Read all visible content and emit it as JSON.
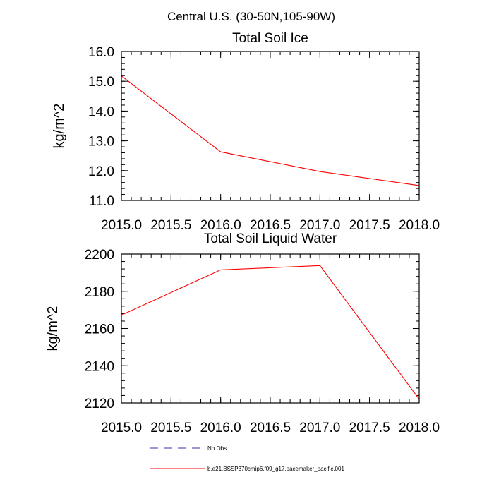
{
  "figure_title": "Central U.S. (30-50N,105-90W)",
  "colors": {
    "model": "#ff0000",
    "obs": "#3333aa",
    "axis": "#000000"
  },
  "legend": [
    {
      "label": "No Obs",
      "style": "dashed",
      "color": "#3333aa"
    },
    {
      "label": "b.e21.BSSP370cmip6.f09_g17.pacemaker_pacific.001",
      "style": "solid",
      "color": "#ff0000"
    }
  ],
  "chart_data": [
    {
      "type": "line",
      "title": "Total Soil Ice",
      "xlabel": "",
      "ylabel": "kg/m^2",
      "xlim": [
        2015.0,
        2018.0
      ],
      "ylim": [
        11.0,
        16.0
      ],
      "x_ticks": [
        2015.0,
        2015.5,
        2016.0,
        2016.5,
        2017.0,
        2017.5,
        2018.0
      ],
      "x_tick_labels": [
        "2015.0",
        "2015.5",
        "2016.0",
        "2016.5",
        "2017.0",
        "2017.5",
        "2018.0"
      ],
      "y_ticks": [
        11.0,
        12.0,
        13.0,
        14.0,
        15.0,
        16.0
      ],
      "y_tick_labels": [
        "11.0",
        "12.0",
        "13.0",
        "14.0",
        "15.0",
        "16.0"
      ],
      "x_minor_step": 0.1,
      "y_minor_step": 0.2,
      "grid": false,
      "series": [
        {
          "x": [
            2015,
            2016,
            2017,
            2018
          ],
          "values": [
            15.18,
            12.63,
            11.97,
            11.5
          ],
          "color": "#ff0000"
        }
      ]
    },
    {
      "type": "line",
      "title": "Total Soil Liquid Water",
      "xlabel": "",
      "ylabel": "kg/m^2",
      "xlim": [
        2015.0,
        2018.0
      ],
      "ylim": [
        2120,
        2200
      ],
      "x_ticks": [
        2015.0,
        2015.5,
        2016.0,
        2016.5,
        2017.0,
        2017.5,
        2018.0
      ],
      "x_tick_labels": [
        "2015.0",
        "2015.5",
        "2016.0",
        "2016.5",
        "2017.0",
        "2017.5",
        "2018.0"
      ],
      "y_ticks": [
        2120,
        2140,
        2160,
        2180,
        2200
      ],
      "y_tick_labels": [
        "2120",
        "2140",
        "2160",
        "2180",
        "2200"
      ],
      "x_minor_step": 0.1,
      "y_minor_step": 4,
      "grid": false,
      "series": [
        {
          "x": [
            2015,
            2016,
            2017,
            2018
          ],
          "values": [
            2167.2,
            2191.5,
            2193.8,
            2122.0
          ],
          "color": "#ff0000"
        }
      ]
    }
  ]
}
